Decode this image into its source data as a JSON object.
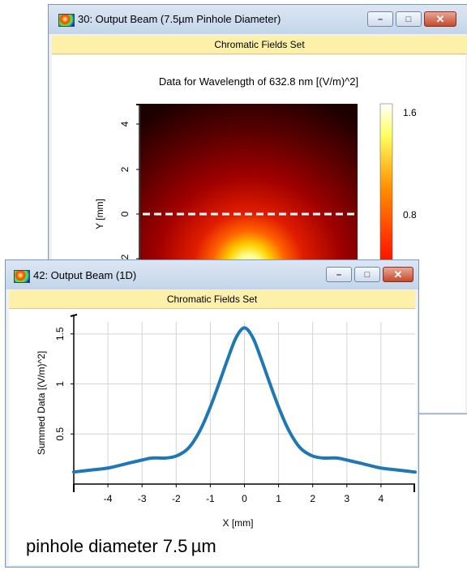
{
  "back_window": {
    "title": "30: Output Beam (7.5µm Pinhole Diameter)",
    "header": "Chromatic Fields Set",
    "plot_title": "Data for Wavelength of 632.8 nm  [(V/m)^2]",
    "y_label": "Y [mm]",
    "y_ticks": [
      "4",
      "2",
      "0",
      "-2"
    ],
    "colorbar_ticks": [
      "1.6",
      "0.8"
    ],
    "buttons": {
      "minimize": "–",
      "maximize": "□",
      "close": "✕"
    }
  },
  "front_window": {
    "title": "42: Output Beam (1D)",
    "header": "Chromatic Fields Set",
    "buttons": {
      "minimize": "–",
      "maximize": "□",
      "close": "✕"
    }
  },
  "caption": "pinhole diameter 7.5 µm",
  "chart_data": [
    {
      "type": "heatmap",
      "title": "Data for Wavelength of 632.8 nm  [(V/m)^2]",
      "ylabel": "Y [mm]",
      "yticks": [
        4,
        2,
        0,
        -2
      ],
      "colorbar": {
        "ticks": [
          1.6,
          0.8
        ],
        "colormap": "black-red-yellow-white"
      },
      "annotation": "dashed line along Y = 0",
      "peak": {
        "x": 0,
        "y": 0,
        "value": 1.6
      }
    },
    {
      "type": "line",
      "xlabel": "X [mm]",
      "ylabel": "Summed Data [(V/m)^2]",
      "xlim": [
        -5,
        5
      ],
      "ylim": [
        0,
        1.62
      ],
      "xticks": [
        -4,
        -3,
        -2,
        -1,
        0,
        1,
        2,
        3,
        4
      ],
      "yticks": [
        0.5,
        1,
        1.5
      ],
      "grid": true,
      "x": [
        -5,
        -4.5,
        -4,
        -3.5,
        -3,
        -2.7,
        -2.3,
        -2,
        -1.7,
        -1.5,
        -1.25,
        -1,
        -0.75,
        -0.5,
        -0.25,
        0,
        0.25,
        0.5,
        0.75,
        1,
        1.25,
        1.5,
        1.7,
        2,
        2.3,
        2.7,
        3,
        3.5,
        4,
        4.5,
        5
      ],
      "series": [
        {
          "color": "#1f77b4",
          "values": [
            0.12,
            0.14,
            0.16,
            0.2,
            0.24,
            0.26,
            0.26,
            0.28,
            0.34,
            0.42,
            0.57,
            0.77,
            1.0,
            1.24,
            1.46,
            1.56,
            1.46,
            1.24,
            1.0,
            0.77,
            0.57,
            0.42,
            0.34,
            0.28,
            0.26,
            0.26,
            0.24,
            0.2,
            0.16,
            0.14,
            0.12
          ]
        }
      ]
    }
  ]
}
